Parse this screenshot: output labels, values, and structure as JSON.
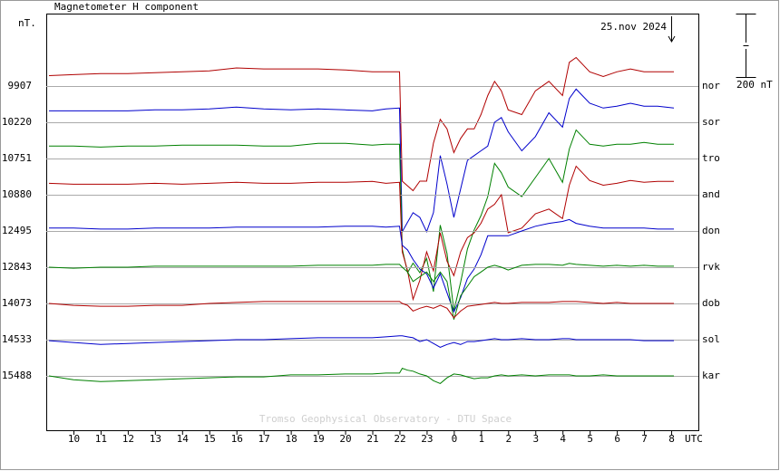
{
  "chart_data": {
    "type": "line",
    "title": "Magnetometer H component",
    "y_unit": "nT.",
    "date": "25.nov 2024",
    "x_unit": "UTC",
    "credit": "Tromso Geophysical Observatory - DTU Space",
    "scale_bar": {
      "value": 200,
      "label": "200 nT"
    },
    "xlim": [
      9,
      33
    ],
    "xticks": [
      10,
      11,
      12,
      13,
      14,
      15,
      16,
      17,
      18,
      19,
      20,
      21,
      22,
      23,
      {
        "value": 24,
        "label": "0"
      },
      {
        "value": 25,
        "label": "1"
      },
      {
        "value": 26,
        "label": "2"
      },
      {
        "value": 27,
        "label": "3"
      },
      {
        "value": 28,
        "label": "4"
      },
      {
        "value": 29,
        "label": "5"
      },
      {
        "value": 30,
        "label": "6"
      },
      {
        "value": 31,
        "label": "7"
      },
      {
        "value": 32,
        "label": "8"
      }
    ],
    "grid": true,
    "x": [
      9.1,
      10,
      11,
      12,
      13,
      14,
      15,
      16,
      17,
      18,
      19,
      20,
      21,
      21.5,
      22,
      22.1,
      22.3,
      22.5,
      22.75,
      23,
      23.25,
      23.5,
      23.75,
      24,
      24.25,
      24.5,
      24.75,
      25,
      25.25,
      25.5,
      25.75,
      26,
      26.5,
      27,
      27.5,
      28,
      28.25,
      28.5,
      29,
      29.5,
      30,
      30.5,
      31,
      31.5,
      32.1
    ],
    "series": [
      {
        "name": "nor",
        "baseline": 9907,
        "color": "#b00000",
        "values": [
          33,
          36,
          39,
          39,
          42,
          45,
          48,
          57,
          54,
          54,
          54,
          51,
          45,
          45,
          45,
          -300,
          -315,
          -330,
          -300,
          -300,
          -180,
          -105,
          -135,
          -210,
          -165,
          -135,
          -135,
          -90,
          -30,
          15,
          -15,
          -75,
          -90,
          -15,
          15,
          -30,
          75,
          90,
          45,
          30,
          45,
          54,
          45,
          45,
          45
        ]
      },
      {
        "name": "sor",
        "baseline": 10220,
        "color": "#0000cc",
        "values": [
          36,
          36,
          36,
          36,
          39,
          39,
          42,
          48,
          42,
          39,
          42,
          39,
          36,
          42,
          45,
          -345,
          -315,
          -285,
          -300,
          -345,
          -285,
          -105,
          -195,
          -300,
          -210,
          -120,
          -105,
          -90,
          -75,
          0,
          15,
          -30,
          -90,
          -45,
          30,
          -15,
          75,
          105,
          60,
          45,
          51,
          60,
          51,
          51,
          45
        ]
      },
      {
        "name": "tro",
        "baseline": 10751,
        "color": "#008000",
        "values": [
          39,
          39,
          36,
          39,
          39,
          42,
          42,
          42,
          39,
          39,
          48,
          48,
          42,
          45,
          45,
          -285,
          -360,
          -330,
          -360,
          -315,
          -420,
          -210,
          -300,
          -480,
          -390,
          -285,
          -225,
          -180,
          -120,
          -15,
          -45,
          -90,
          -120,
          -60,
          0,
          -75,
          30,
          90,
          45,
          39,
          45,
          45,
          51,
          45,
          45
        ]
      },
      {
        "name": "and",
        "baseline": 10880,
        "color": "#b00000",
        "values": [
          36,
          33,
          33,
          33,
          36,
          33,
          36,
          39,
          36,
          36,
          39,
          39,
          42,
          36,
          39,
          -180,
          -240,
          -330,
          -270,
          -180,
          -240,
          -120,
          -210,
          -255,
          -180,
          -135,
          -120,
          -90,
          -45,
          -30,
          0,
          -120,
          -105,
          -60,
          -45,
          -75,
          30,
          90,
          45,
          30,
          36,
          45,
          39,
          42,
          42
        ]
      },
      {
        "name": "don",
        "baseline": 12495,
        "color": "#0000cc",
        "values": [
          9,
          9,
          6,
          6,
          9,
          9,
          9,
          12,
          12,
          12,
          12,
          15,
          15,
          12,
          15,
          -45,
          -60,
          -90,
          -120,
          -135,
          -180,
          -135,
          -195,
          -255,
          -210,
          -150,
          -120,
          -75,
          -15,
          -15,
          -15,
          -15,
          0,
          15,
          24,
          30,
          36,
          24,
          15,
          9,
          9,
          9,
          9,
          6,
          6
        ]
      },
      {
        "name": "rvk",
        "baseline": 12843,
        "color": "#008000",
        "values": [
          0,
          -3,
          0,
          0,
          3,
          3,
          3,
          3,
          3,
          3,
          6,
          6,
          6,
          9,
          9,
          0,
          -15,
          -45,
          -30,
          -15,
          -45,
          -15,
          -45,
          -165,
          -90,
          -60,
          -30,
          -15,
          0,
          6,
          0,
          -9,
          6,
          9,
          9,
          6,
          12,
          9,
          6,
          3,
          6,
          3,
          6,
          3,
          3
        ]
      },
      {
        "name": "dob",
        "baseline": 14073,
        "color": "#b00000",
        "values": [
          0,
          -6,
          -9,
          -9,
          -6,
          -6,
          0,
          3,
          6,
          6,
          6,
          6,
          6,
          6,
          6,
          0,
          -6,
          -24,
          -15,
          -9,
          -15,
          -6,
          -15,
          -45,
          -24,
          -9,
          -6,
          -3,
          0,
          3,
          0,
          0,
          3,
          3,
          3,
          6,
          6,
          6,
          3,
          0,
          3,
          0,
          0,
          0,
          0
        ]
      },
      {
        "name": "sol",
        "baseline": 14533,
        "color": "#0000cc",
        "values": [
          -3,
          -9,
          -15,
          -12,
          -9,
          -6,
          -3,
          0,
          0,
          3,
          6,
          6,
          6,
          9,
          12,
          12,
          9,
          6,
          -6,
          0,
          -12,
          -24,
          -15,
          -9,
          -15,
          -6,
          -6,
          -3,
          0,
          3,
          0,
          0,
          3,
          0,
          0,
          3,
          3,
          0,
          0,
          0,
          0,
          0,
          -3,
          -3,
          -3
        ]
      },
      {
        "name": "kar",
        "baseline": 15488,
        "color": "#008000",
        "values": [
          0,
          -12,
          -18,
          -15,
          -12,
          -9,
          -6,
          -3,
          -3,
          3,
          3,
          6,
          6,
          9,
          9,
          24,
          18,
          15,
          6,
          0,
          -15,
          -24,
          -6,
          6,
          3,
          -3,
          -9,
          -6,
          -6,
          0,
          3,
          0,
          3,
          0,
          3,
          3,
          3,
          0,
          0,
          3,
          0,
          0,
          0,
          0,
          0
        ]
      }
    ]
  }
}
